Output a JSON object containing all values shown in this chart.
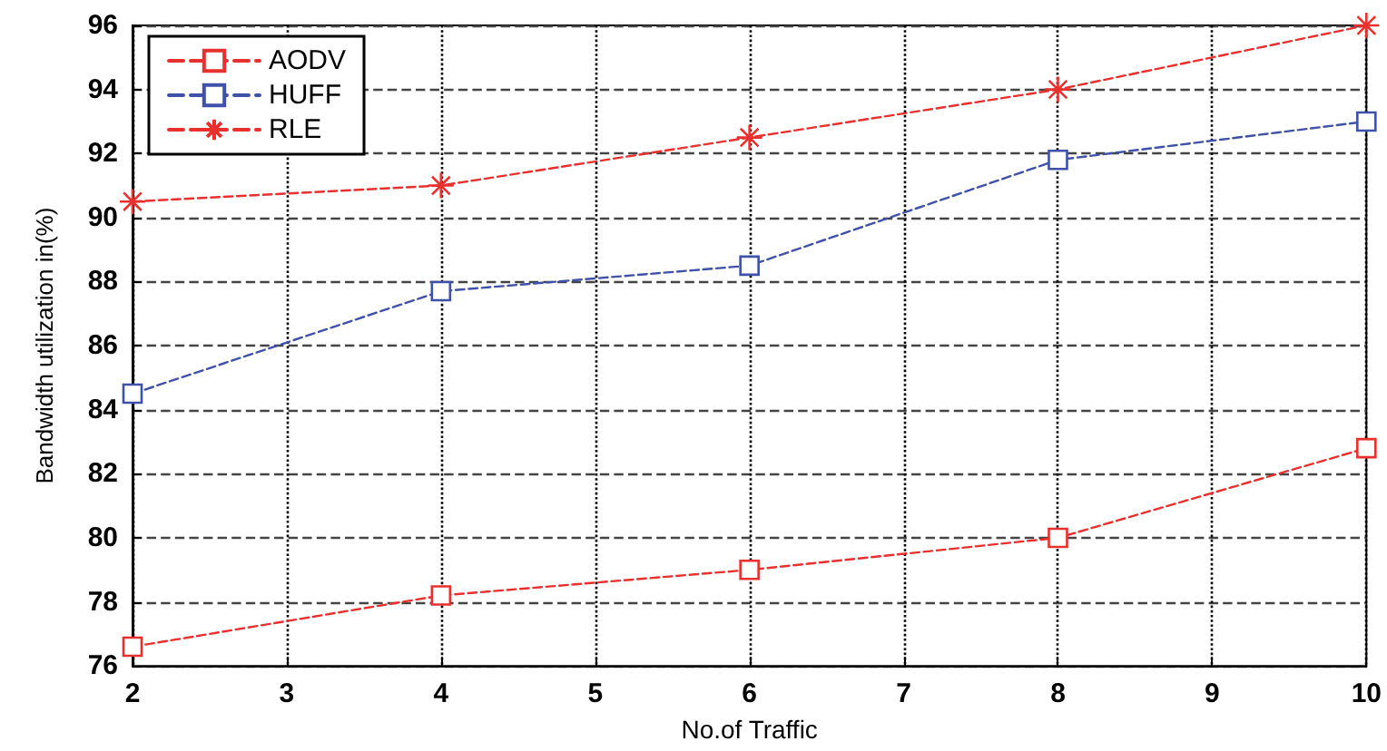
{
  "chart_data": {
    "type": "line",
    "xlabel": "No.of Traffic",
    "ylabel": "Bandwidth utilization in(%)",
    "x": [
      2,
      4,
      6,
      8,
      10
    ],
    "series": [
      {
        "name": "AODV",
        "color": "#e8312f",
        "values": [
          76.6,
          78.2,
          79.0,
          80.0,
          82.8
        ],
        "marker": "square"
      },
      {
        "name": "HUFF",
        "color": "#3f51a8",
        "values": [
          84.5,
          87.7,
          88.5,
          91.8,
          93.0
        ],
        "marker": "square"
      },
      {
        "name": "RLE",
        "color": "#e8312f",
        "values": [
          90.5,
          91.0,
          92.5,
          94.0,
          96.0
        ],
        "marker": "cross"
      }
    ],
    "xlim": [
      2,
      10
    ],
    "xticks": [
      2,
      3,
      4,
      5,
      6,
      7,
      8,
      9,
      10
    ],
    "ylim": [
      76,
      96
    ],
    "yticks": [
      76,
      78,
      80,
      82,
      84,
      86,
      88,
      90,
      92,
      94,
      96
    ],
    "grid": true,
    "legend": "top left",
    "line_style": "dashed"
  }
}
